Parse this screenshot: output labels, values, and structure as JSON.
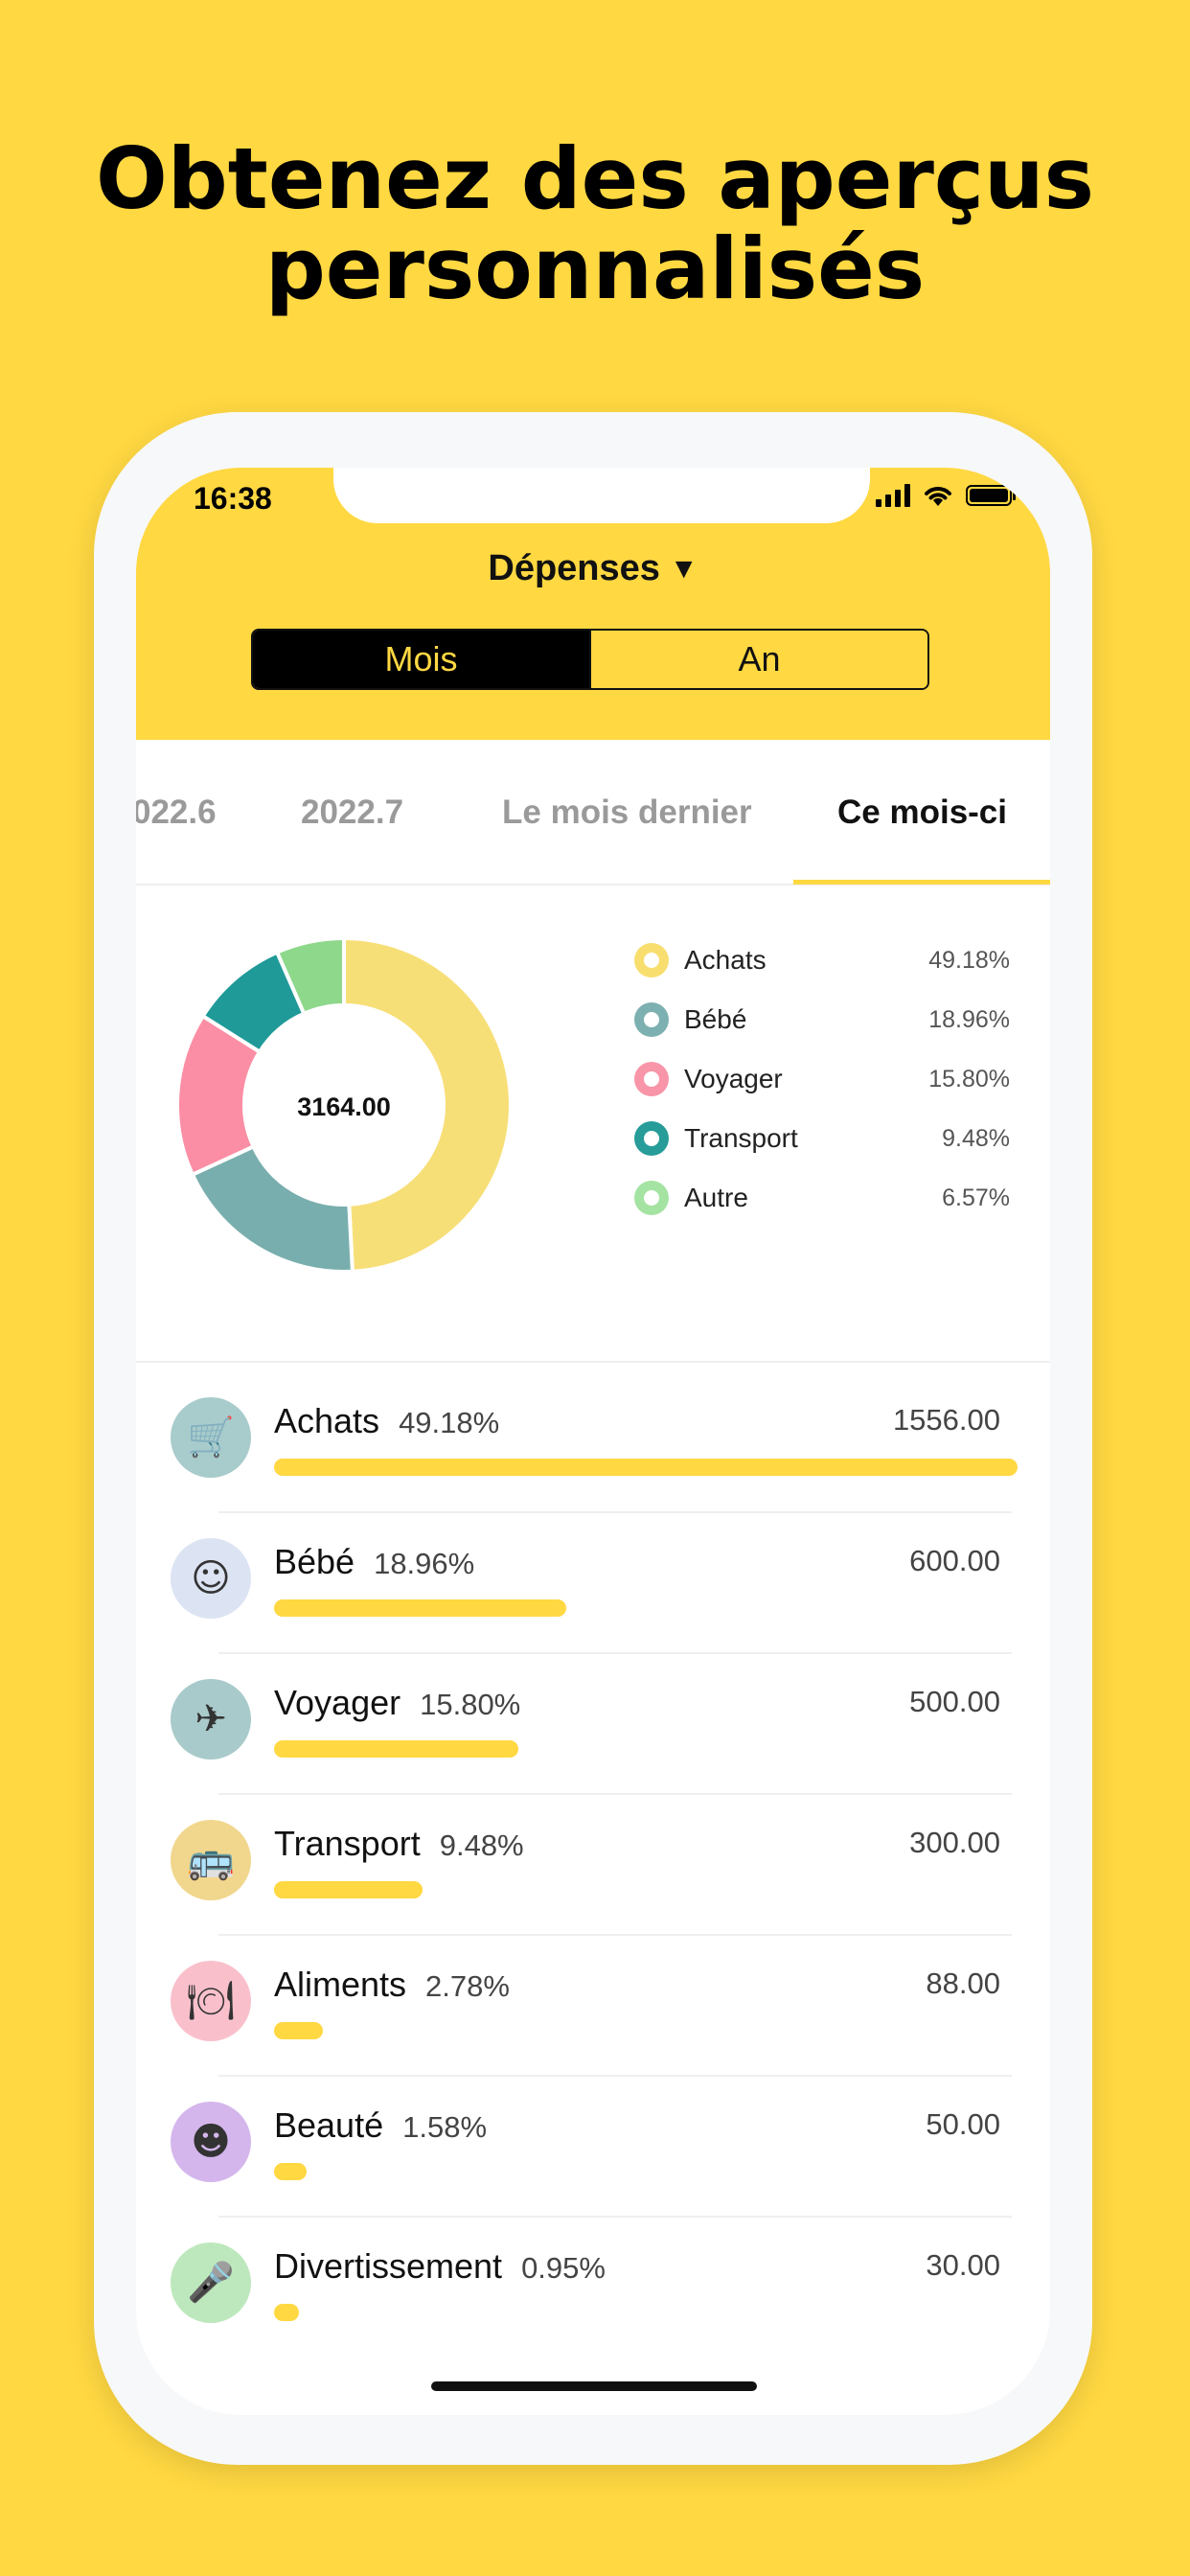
{
  "headline": {
    "line1": "Obtenez des aperçus",
    "line2": "personnalisés"
  },
  "status_bar": {
    "time": "16:38"
  },
  "header": {
    "title": "Dépenses",
    "caret": "▼",
    "segments": [
      {
        "label": "Mois",
        "active": true
      },
      {
        "label": "An",
        "active": false
      }
    ]
  },
  "period_tabs": [
    {
      "label": "022.6",
      "active": false
    },
    {
      "label": "2022.7",
      "active": false
    },
    {
      "label": "Le mois dernier",
      "active": false
    },
    {
      "label": "Ce mois-ci",
      "active": true
    }
  ],
  "donut": {
    "total": "3164.00",
    "slices": [
      {
        "label": "Achats",
        "percent": "49.18%",
        "value": 49.18,
        "color": "#F7DF78",
        "dot": "#F8DE6E"
      },
      {
        "label": "Bébé",
        "percent": "18.96%",
        "value": 18.96,
        "color": "#79AEAE",
        "dot": "#7DB0B0"
      },
      {
        "label": "Voyager",
        "percent": "15.80%",
        "value": 15.8,
        "color": "#FB8EA4",
        "dot": "#F895A9"
      },
      {
        "label": "Transport",
        "percent": "9.48%",
        "value": 9.48,
        "color": "#1F9A98",
        "dot": "#279C99"
      },
      {
        "label": "Autre",
        "percent": "6.57%",
        "value": 6.57,
        "color": "#8ED88C",
        "dot": "#A4E3A2"
      }
    ]
  },
  "categories": [
    {
      "name": "Achats",
      "percent": "49.18%",
      "amount": "1556.00",
      "share": 1.0,
      "icon": "shopping-cart-icon",
      "icon_bg": "#A8CCCB",
      "glyph": "🛒"
    },
    {
      "name": "Bébé",
      "percent": "18.96%",
      "amount": "600.00",
      "share": 0.393,
      "icon": "baby-icon",
      "icon_bg": "#DCE3F3",
      "glyph": "☺"
    },
    {
      "name": "Voyager",
      "percent": "15.80%",
      "amount": "500.00",
      "share": 0.328,
      "icon": "airplane-icon",
      "icon_bg": "#A9CACA",
      "glyph": "✈"
    },
    {
      "name": "Transport",
      "percent": "9.48%",
      "amount": "300.00",
      "share": 0.2,
      "icon": "bus-icon",
      "icon_bg": "#F1D68D",
      "glyph": "🚌"
    },
    {
      "name": "Aliments",
      "percent": "2.78%",
      "amount": "88.00",
      "share": 0.066,
      "icon": "food-plate-icon",
      "icon_bg": "#F9C0CC",
      "glyph": "🍽"
    },
    {
      "name": "Beauté",
      "percent": "1.58%",
      "amount": "50.00",
      "share": 0.044,
      "icon": "beauty-head-icon",
      "icon_bg": "#D4B6EC",
      "glyph": "☻"
    },
    {
      "name": "Divertissement",
      "percent": "0.95%",
      "amount": "30.00",
      "share": 0.03,
      "icon": "microphone-icon",
      "icon_bg": "#BDE8BD",
      "glyph": "🎤"
    }
  ]
}
